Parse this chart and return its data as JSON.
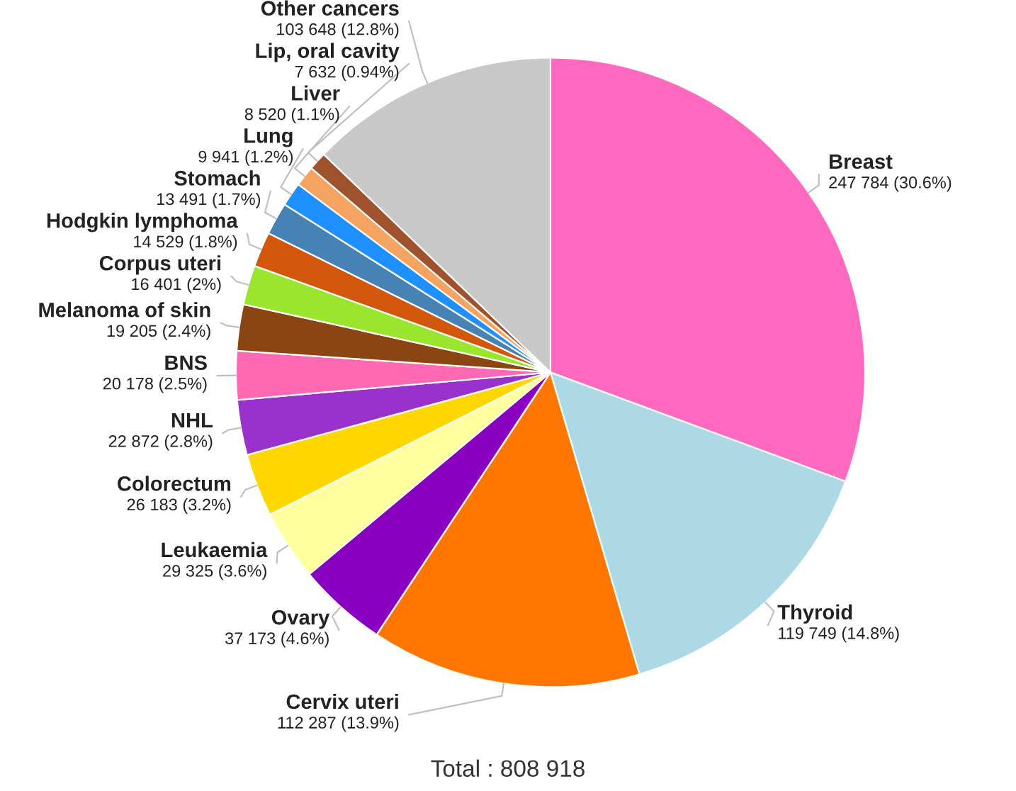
{
  "chart_data": {
    "type": "pie",
    "categories": [
      "Breast",
      "Thyroid",
      "Cervix uteri",
      "Ovary",
      "Leukaemia",
      "Colorectum",
      "NHL",
      "BNS",
      "Melanoma of skin",
      "Corpus uteri",
      "Hodgkin lymphoma",
      "Stomach",
      "Lung",
      "Liver",
      "Lip, oral cavity",
      "Other cancers"
    ],
    "values": [
      247784,
      119749,
      112287,
      37173,
      29325,
      26183,
      22872,
      20178,
      19205,
      16401,
      14529,
      13491,
      9941,
      8520,
      7632,
      103648
    ],
    "colors": [
      "#ff69c0",
      "#add8e6",
      "#ff7700",
      "#8a00c0",
      "#ffffa0",
      "#ffd700",
      "#9932cc",
      "#ff69b4",
      "#8b4513",
      "#9ae62e",
      "#d2570a",
      "#4682b4",
      "#1e90ff",
      "#f4a460",
      "#a0522d",
      "#c8c8c8"
    ],
    "value_labels": [
      "247 784 (30.6%)",
      "119 749 (14.8%)",
      "112 287 (13.9%)",
      "37 173 (4.6%)",
      "29 325 (3.6%)",
      "26 183 (3.2%)",
      "22 872 (2.8%)",
      "20 178 (2.5%)",
      "19 205 (2.4%)",
      "16 401 (2%)",
      "14 529 (1.8%)",
      "13 491 (1.7%)",
      "9 941 (1.2%)",
      "8 520 (1.1%)",
      "7 632 (0.94%)",
      "103 648 (12.8%)"
    ],
    "annotations": [
      "Total : 808 918"
    ]
  }
}
